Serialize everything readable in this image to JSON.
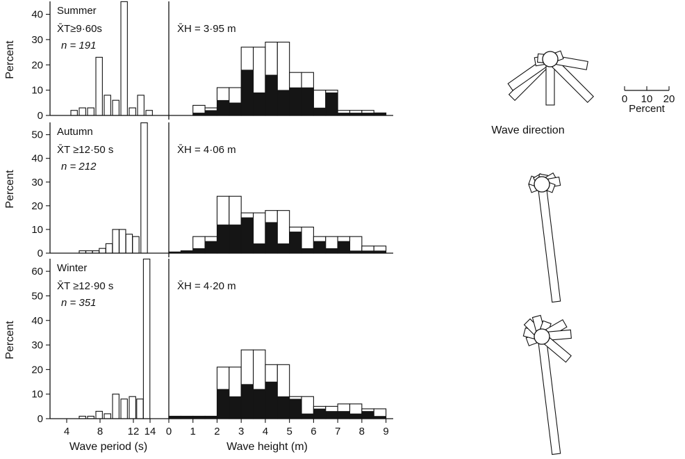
{
  "chart_data": {
    "type": "bar",
    "period_axis": {
      "title": "Wave period (s)",
      "ticks": [
        4,
        8,
        12,
        14
      ],
      "xlim": [
        2,
        15
      ]
    },
    "height_axis": {
      "title": "Wave height (m)",
      "ticks": [
        0,
        1,
        2,
        3,
        4,
        5,
        6,
        7,
        8,
        9
      ],
      "xlim": [
        0,
        9.3
      ]
    },
    "direction": {
      "label": "Wave direction",
      "scale_ticks": [
        "0",
        "10",
        "20"
      ],
      "scale_unit": "Percent",
      "scale_max": 20
    },
    "panels": [
      {
        "season": "Summer",
        "period_stat": "X̄T≥9·60s",
        "n_label": "n = 191",
        "height_stat": "X̄H = 3·95 m",
        "ylabel": "Percent",
        "ylim": [
          0,
          44
        ],
        "yticks": [
          0,
          10,
          20,
          30,
          40
        ],
        "period_bars": [
          {
            "x": 5,
            "v": 2
          },
          {
            "x": 6,
            "v": 3
          },
          {
            "x": 7,
            "v": 3
          },
          {
            "x": 8,
            "v": 23
          },
          {
            "x": 9,
            "v": 8
          },
          {
            "x": 10,
            "v": 6
          },
          {
            "x": 11,
            "v": 45
          },
          {
            "x": 12,
            "v": 3
          },
          {
            "x": 13,
            "v": 8
          },
          {
            "x": 14,
            "v": 2
          }
        ],
        "height_bins": [
          1,
          1.5,
          2,
          2.5,
          3,
          3.5,
          4,
          4.5,
          5,
          5.5,
          6,
          6.5,
          7,
          7.5,
          8,
          8.5,
          9
        ],
        "height_open": [
          4,
          3,
          11,
          11,
          27,
          27,
          29,
          29,
          17,
          17,
          10,
          10,
          2,
          2,
          2,
          1
        ],
        "height_filled": [
          1,
          2,
          6,
          5,
          18,
          9,
          16,
          10,
          11,
          11,
          3,
          9,
          1,
          1,
          1,
          1
        ],
        "rays": [
          {
            "bearing": -45,
            "pct": 17
          },
          {
            "bearing": -35,
            "pct": 15
          },
          {
            "bearing": -10,
            "pct": 3
          },
          {
            "bearing": 5,
            "pct": 2
          },
          {
            "bearing": -90,
            "pct": 14
          },
          {
            "bearing": -135,
            "pct": 18
          },
          {
            "bearing": -170,
            "pct": 11
          },
          {
            "bearing": 160,
            "pct": 2
          }
        ]
      },
      {
        "season": "Autumn",
        "period_stat": "X̄T ≥12·50 s",
        "n_label": "n = 212",
        "height_stat": "X̄H = 4·06 m",
        "ylabel": "Percent",
        "ylim": [
          0,
          54
        ],
        "yticks": [
          0,
          10,
          20,
          30,
          40,
          50
        ],
        "period_bars": [
          {
            "x": 6,
            "v": 1
          },
          {
            "x": 6.8,
            "v": 1
          },
          {
            "x": 7.6,
            "v": 1
          },
          {
            "x": 8.4,
            "v": 2
          },
          {
            "x": 9.2,
            "v": 4
          },
          {
            "x": 10,
            "v": 10
          },
          {
            "x": 10.8,
            "v": 10
          },
          {
            "x": 11.6,
            "v": 8
          },
          {
            "x": 12.4,
            "v": 7
          },
          {
            "x": 13.4,
            "v": 55
          }
        ],
        "height_bins": [
          0,
          0.5,
          1,
          1.5,
          2,
          2.5,
          3,
          3.5,
          4,
          4.5,
          5,
          5.5,
          6,
          6.5,
          7,
          7.5,
          8,
          8.5,
          9
        ],
        "height_open": [
          0.5,
          1,
          7,
          7,
          24,
          24,
          17,
          17,
          18,
          18,
          11,
          11,
          7,
          7,
          7,
          7,
          3,
          3
        ],
        "height_filled": [
          0.5,
          1,
          2,
          5,
          12,
          12,
          15,
          4,
          13,
          4,
          9,
          2,
          5,
          2,
          5,
          1,
          1,
          1
        ],
        "rays": [
          {
            "bearing": -97,
            "pct": 40
          },
          {
            "bearing": -20,
            "pct": 2
          },
          {
            "bearing": 20,
            "pct": 2
          },
          {
            "bearing": 60,
            "pct": 1
          },
          {
            "bearing": 100,
            "pct": 1
          },
          {
            "bearing": 150,
            "pct": 3
          },
          {
            "bearing": 170,
            "pct": 4
          },
          {
            "bearing": -160,
            "pct": 2
          }
        ]
      },
      {
        "season": "Winter",
        "period_stat": "X̄T ≥12·90 s",
        "n_label": "n = 351",
        "height_stat": "X̄H = 4·20 m",
        "ylabel": "Percent",
        "ylim": [
          0,
          64
        ],
        "yticks": [
          0,
          10,
          20,
          30,
          40,
          50,
          60
        ],
        "period_bars": [
          {
            "x": 6,
            "v": 1
          },
          {
            "x": 7,
            "v": 1
          },
          {
            "x": 8,
            "v": 3
          },
          {
            "x": 9,
            "v": 2
          },
          {
            "x": 10,
            "v": 10
          },
          {
            "x": 11,
            "v": 8
          },
          {
            "x": 12,
            "v": 9
          },
          {
            "x": 12.9,
            "v": 8
          },
          {
            "x": 13.7,
            "v": 65
          }
        ],
        "height_bins": [
          0,
          0.5,
          1,
          1.5,
          2,
          2.5,
          3,
          3.5,
          4,
          4.5,
          5,
          5.5,
          6,
          6.5,
          7,
          7.5,
          8,
          8.5,
          9
        ],
        "height_open": [
          1,
          1,
          1,
          1,
          21,
          21,
          28,
          28,
          22,
          22,
          9,
          9,
          5,
          5,
          6,
          6,
          4,
          4
        ],
        "height_filled": [
          1,
          1,
          1,
          1,
          12,
          9,
          14,
          12,
          15,
          9,
          8,
          2,
          4,
          3,
          3,
          2,
          3,
          1
        ],
        "rays": [
          {
            "bearing": -97,
            "pct": 40
          },
          {
            "bearing": -20,
            "pct": 3
          },
          {
            "bearing": 15,
            "pct": 4
          },
          {
            "bearing": 45,
            "pct": 5
          },
          {
            "bearing": 75,
            "pct": 5
          },
          {
            "bearing": 110,
            "pct": 3
          },
          {
            "bearing": 150,
            "pct": 7
          },
          {
            "bearing": 175,
            "pct": 8
          },
          {
            "bearing": -140,
            "pct": 10
          }
        ]
      }
    ]
  }
}
